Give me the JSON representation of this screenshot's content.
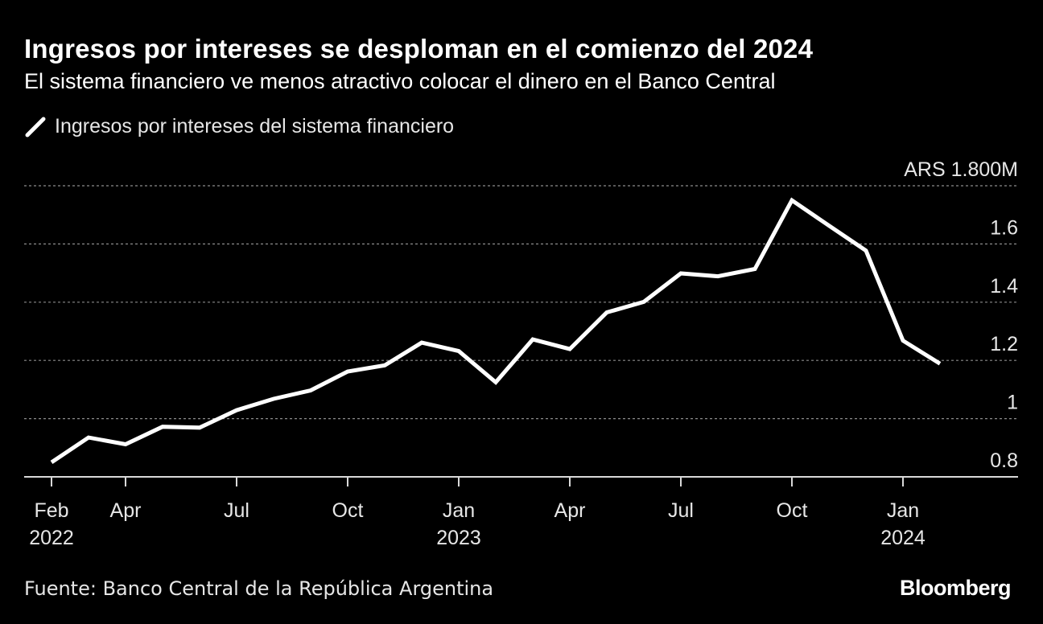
{
  "title": "Ingresos por intereses se desploman en el comienzo del 2024",
  "subtitle": "El sistema financiero ve menos atractivo colocar el dinero en el Banco Central",
  "source": "Fuente: Banco Central de la República Argentina",
  "brand": "Bloomberg",
  "colors": {
    "background": "#000000",
    "line": "#ffffff",
    "grid": "#8c8c8c",
    "text": "#e6e6e6"
  },
  "chart_data": {
    "type": "line",
    "x": [
      "2022-02",
      "2022-03",
      "2022-04",
      "2022-05",
      "2022-06",
      "2022-07",
      "2022-08",
      "2022-09",
      "2022-10",
      "2022-11",
      "2022-12",
      "2023-01",
      "2023-02",
      "2023-03",
      "2023-04",
      "2023-05",
      "2023-06",
      "2023-07",
      "2023-08",
      "2023-09",
      "2023-10",
      "2023-11",
      "2023-12",
      "2024-01",
      "2024-02"
    ],
    "series": [
      {
        "name": "Ingresos por intereses del sistema financiero",
        "values": [
          0.85,
          0.935,
          0.912,
          0.972,
          0.969,
          1.029,
          1.068,
          1.097,
          1.162,
          1.183,
          1.261,
          1.232,
          1.125,
          1.272,
          1.239,
          1.365,
          1.401,
          1.499,
          1.489,
          1.514,
          1.75,
          1.663,
          1.577,
          1.268,
          1.189
        ]
      }
    ],
    "ylim": [
      0.8,
      1.8
    ],
    "yticks": [
      0.8,
      1.0,
      1.2,
      1.4,
      1.6,
      1.8
    ],
    "ytick_labels": [
      "0.8",
      "1",
      "1.2",
      "1.4",
      "1.6",
      "ARS 1.800M"
    ],
    "xticks": [
      {
        "x": "2022-02",
        "label": "Feb",
        "year": "2022"
      },
      {
        "x": "2022-04",
        "label": "Apr",
        "year": ""
      },
      {
        "x": "2022-07",
        "label": "Jul",
        "year": ""
      },
      {
        "x": "2022-10",
        "label": "Oct",
        "year": ""
      },
      {
        "x": "2023-01",
        "label": "Jan",
        "year": "2023"
      },
      {
        "x": "2023-04",
        "label": "Apr",
        "year": ""
      },
      {
        "x": "2023-07",
        "label": "Jul",
        "year": ""
      },
      {
        "x": "2023-10",
        "label": "Oct",
        "year": ""
      },
      {
        "x": "2024-01",
        "label": "Jan",
        "year": "2024"
      }
    ],
    "grid": true,
    "legend": "top-left",
    "yaxis_side": "right"
  }
}
